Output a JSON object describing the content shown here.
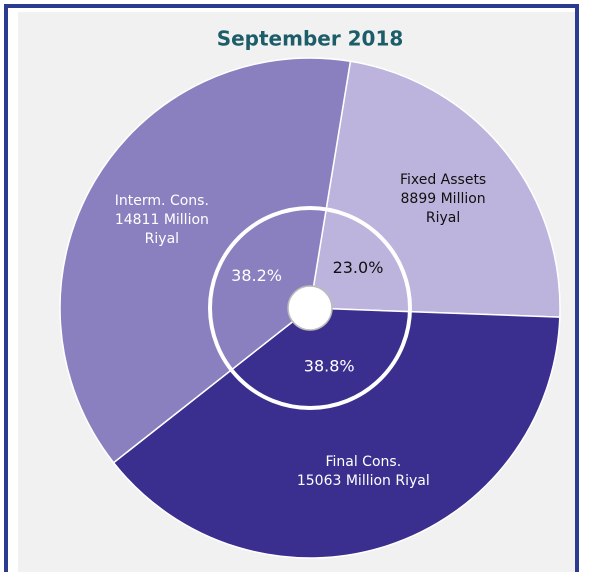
{
  "chart_data": {
    "type": "pie",
    "title": "September 2018",
    "categories": [
      "Fixed Assets",
      "Final Cons.",
      "Interm. Cons."
    ],
    "values": [
      23.0,
      38.8,
      38.2
    ],
    "value_labels": [
      "23.0%",
      "38.8%",
      "38.2%"
    ],
    "amounts": [
      8899,
      15063,
      14811
    ],
    "amount_labels": [
      "8899 Million Riyal",
      "15063 Million Riyal",
      "14811 Million Riyal"
    ],
    "colors": [
      "#bcb4dc",
      "#3a2f8e",
      "#8a80bf"
    ],
    "label_colors": [
      "#111111",
      "#ffffff",
      "#ffffff"
    ]
  }
}
